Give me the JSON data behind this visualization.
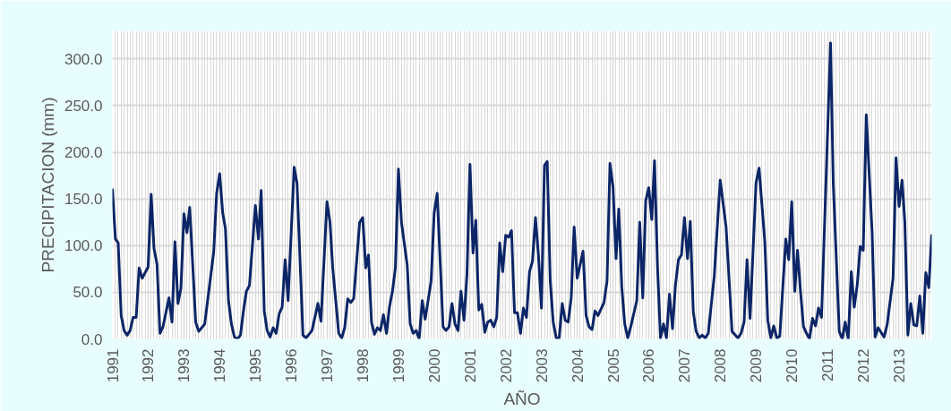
{
  "chart_data": {
    "type": "line",
    "xlabel": "AÑO",
    "ylabel": "PRECIPITACION (mm)",
    "x": [
      "1991-01",
      "1991-02",
      "1991-03",
      "1991-04",
      "1991-05",
      "1991-06",
      "1991-07",
      "1991-08",
      "1991-09",
      "1991-10",
      "1991-11",
      "1992-01",
      "1992-02",
      "1992-03",
      "1992-04",
      "1992-05",
      "1992-06",
      "1992-08",
      "1992-09",
      "1992-10",
      "1992-11",
      "1992-12",
      "1993-01",
      "1993-02",
      "1993-03",
      "1993-05",
      "1993-06",
      "1993-08",
      "1993-11",
      "1993-12",
      "1994-01",
      "1994-02",
      "1994-03",
      "1994-04",
      "1994-05",
      "1994-06",
      "1994-07",
      "1994-08",
      "1994-09",
      "1994-10",
      "1994-11",
      "1995-01",
      "1995-02",
      "1995-03",
      "1995-04",
      "1995-05",
      "1995-06",
      "1995-07",
      "1995-08",
      "1995-09",
      "1995-10",
      "1995-11",
      "1995-12",
      "1996-02",
      "1996-03",
      "1996-05",
      "1996-06",
      "1996-08",
      "1996-10",
      "1996-11",
      "1997-01",
      "1997-02",
      "1997-03",
      "1997-04",
      "1997-05",
      "1997-06",
      "1997-07",
      "1997-08",
      "1997-09",
      "1997-10",
      "1997-12",
      "1998-01",
      "1998-02",
      "1998-03",
      "1998-04",
      "1998-05",
      "1998-06",
      "1998-07",
      "1998-08",
      "1998-09",
      "1998-10",
      "1998-11",
      "1998-12",
      "1999-01",
      "1999-02",
      "1999-04",
      "1999-05",
      "1999-06",
      "1999-07",
      "1999-08",
      "1999-09",
      "1999-10",
      "1999-12",
      "2000-01",
      "2000-02",
      "2000-04",
      "2000-05",
      "2000-06",
      "2000-07",
      "2000-08",
      "2000-09",
      "2000-10",
      "2000-11",
      "2000-12",
      "2001-01",
      "2001-02",
      "2001-03",
      "2001-04",
      "2001-05",
      "2001-06",
      "2001-07",
      "2001-08",
      "2001-09",
      "2001-10",
      "2001-11",
      "2001-12",
      "2002-01",
      "2002-02",
      "2002-03",
      "2002-04",
      "2002-05",
      "2002-06",
      "2002-07",
      "2002-08",
      "2002-09",
      "2002-10",
      "2002-11",
      "2002-12",
      "2003-01",
      "2003-02",
      "2003-03",
      "2003-04",
      "2003-05",
      "2003-06",
      "2003-07",
      "2003-08",
      "2003-09",
      "2003-10",
      "2003-11",
      "2003-12",
      "2004-01",
      "2004-03",
      "2004-04",
      "2004-05",
      "2004-06",
      "2004-07",
      "2004-08",
      "2004-10",
      "2004-11",
      "2004-12",
      "2005-01",
      "2005-02",
      "2005-03",
      "2005-04",
      "2005-05",
      "2005-06",
      "2005-07",
      "2005-08",
      "2005-09",
      "2005-10",
      "2005-11",
      "2005-12",
      "2006-01",
      "2006-02",
      "2006-03",
      "2006-04",
      "2006-05",
      "2006-06",
      "2006-07",
      "2006-08",
      "2006-09",
      "2006-10",
      "2006-11",
      "2006-12",
      "2007-01",
      "2007-02",
      "2007-03",
      "2007-04",
      "2007-05",
      "2007-06",
      "2007-07",
      "2007-08",
      "2007-09",
      "2007-11",
      "2008-01",
      "2008-03",
      "2008-05",
      "2008-07",
      "2008-08",
      "2008-09",
      "2008-10",
      "2008-11",
      "2009-01",
      "2009-02",
      "2009-04",
      "2009-05",
      "2009-06",
      "2009-07",
      "2009-08",
      "2009-09",
      "2009-11",
      "2009-12",
      "2010-01",
      "2010-02",
      "2010-03",
      "2010-04",
      "2010-05",
      "2010-06",
      "2010-07",
      "2010-08",
      "2010-09",
      "2010-10",
      "2010-11",
      "2011-02",
      "2011-03",
      "2011-05",
      "2011-06",
      "2011-07",
      "2011-08",
      "2011-09",
      "2011-10",
      "2011-11",
      "2011-12",
      "2012-01",
      "2012-02",
      "2012-04",
      "2012-05",
      "2012-06",
      "2012-08",
      "2012-09",
      "2012-11",
      "2012-12",
      "2013-01",
      "2013-02",
      "2013-03",
      "2013-04",
      "2013-05",
      "2013-06",
      "2013-07",
      "2013-08",
      "2013-09",
      "2013-10",
      "2013-11",
      "2013-12"
    ],
    "series": [
      {
        "color": "#0b2566",
        "values": [
          161,
          107,
          103,
          25,
          9,
          4,
          9,
          23,
          23,
          76,
          65,
          77,
          155,
          97,
          80,
          6,
          13,
          44,
          18,
          104,
          38,
          54,
          134,
          114,
          141,
          18,
          8,
          16,
          93,
          156,
          177,
          135,
          118,
          41,
          16,
          2,
          0,
          4,
          30,
          51,
          57,
          143,
          107,
          159,
          30,
          9,
          2,
          12,
          6,
          27,
          34,
          85,
          41,
          184,
          167,
          4,
          1,
          9,
          38,
          19,
          147,
          125,
          76,
          41,
          6,
          1,
          12,
          43,
          39,
          43,
          125,
          130,
          76,
          90,
          18,
          5,
          12,
          9,
          26,
          6,
          34,
          51,
          76,
          182,
          125,
          79,
          16,
          6,
          9,
          0,
          41,
          21,
          62,
          135,
          156,
          13,
          9,
          13,
          38,
          16,
          9,
          51,
          20,
          69,
          187,
          92,
          127,
          31,
          37,
          7,
          18,
          20,
          13,
          23,
          103,
          72,
          111,
          109,
          116,
          28,
          28,
          6,
          33,
          23,
          72,
          83,
          130,
          90,
          33,
          186,
          190,
          62,
          18,
          1,
          1,
          38,
          20,
          18,
          44,
          120,
          65,
          94,
          25,
          13,
          10,
          30,
          25,
          39,
          62,
          188,
          163,
          86,
          139,
          55,
          16,
          1,
          13,
          27,
          41,
          125,
          44,
          148,
          162,
          128,
          191,
          76,
          1,
          16,
          1,
          48,
          11,
          58,
          85,
          90,
          130,
          86,
          126,
          29,
          8,
          1,
          4,
          1,
          6,
          67,
          170,
          120,
          8,
          1,
          6,
          18,
          85,
          22,
          167,
          183,
          104,
          20,
          1,
          14,
          1,
          3,
          107,
          85,
          147,
          51,
          95,
          50,
          13,
          6,
          0,
          22,
          14,
          33,
          23,
          317,
          167,
          8,
          0,
          18,
          0,
          72,
          34,
          58,
          99,
          95,
          240,
          114,
          2,
          12,
          2,
          15,
          65,
          194,
          142,
          170,
          125,
          4,
          38,
          15,
          14,
          46,
          6,
          71,
          55,
          112
        ]
      }
    ],
    "xlim": [
      "1991-01",
      "2013-12"
    ],
    "xticks": [
      {
        "value": "1991-01",
        "label": "1991"
      },
      {
        "value": "1992-01",
        "label": "1992"
      },
      {
        "value": "1993-01",
        "label": "1993"
      },
      {
        "value": "1994-01",
        "label": "1994"
      },
      {
        "value": "1995-01",
        "label": "1995"
      },
      {
        "value": "1996-01",
        "label": "1996"
      },
      {
        "value": "1997-01",
        "label": "1997"
      },
      {
        "value": "1998-01",
        "label": "1998"
      },
      {
        "value": "1999-01",
        "label": "1999"
      },
      {
        "value": "2000-01",
        "label": "2000"
      },
      {
        "value": "2001-01",
        "label": "2001"
      },
      {
        "value": "2002-01",
        "label": "2002"
      },
      {
        "value": "2003-01",
        "label": "2003"
      },
      {
        "value": "2004-01",
        "label": "2004"
      },
      {
        "value": "2005-01",
        "label": "2005"
      },
      {
        "value": "2006-01",
        "label": "2006"
      },
      {
        "value": "2007-01",
        "label": "2007"
      },
      {
        "value": "2008-01",
        "label": "2008"
      },
      {
        "value": "2009-01",
        "label": "2009"
      },
      {
        "value": "2010-01",
        "label": "2010"
      },
      {
        "value": "2011-01",
        "label": "2011"
      },
      {
        "value": "2012-01",
        "label": "2012"
      },
      {
        "value": "2013-01",
        "label": "2013"
      }
    ],
    "ylim": [
      0,
      330
    ],
    "yticks": [
      {
        "value": 0,
        "label": "0.0"
      },
      {
        "value": 50,
        "label": "50.0"
      },
      {
        "value": 100,
        "label": "100.0"
      },
      {
        "value": 150,
        "label": "150.0"
      },
      {
        "value": 200,
        "label": "200.0"
      },
      {
        "value": 250,
        "label": "250.0"
      },
      {
        "value": 300,
        "label": "300.0"
      }
    ],
    "grid": true,
    "marker": "none",
    "line_style": "solid"
  }
}
